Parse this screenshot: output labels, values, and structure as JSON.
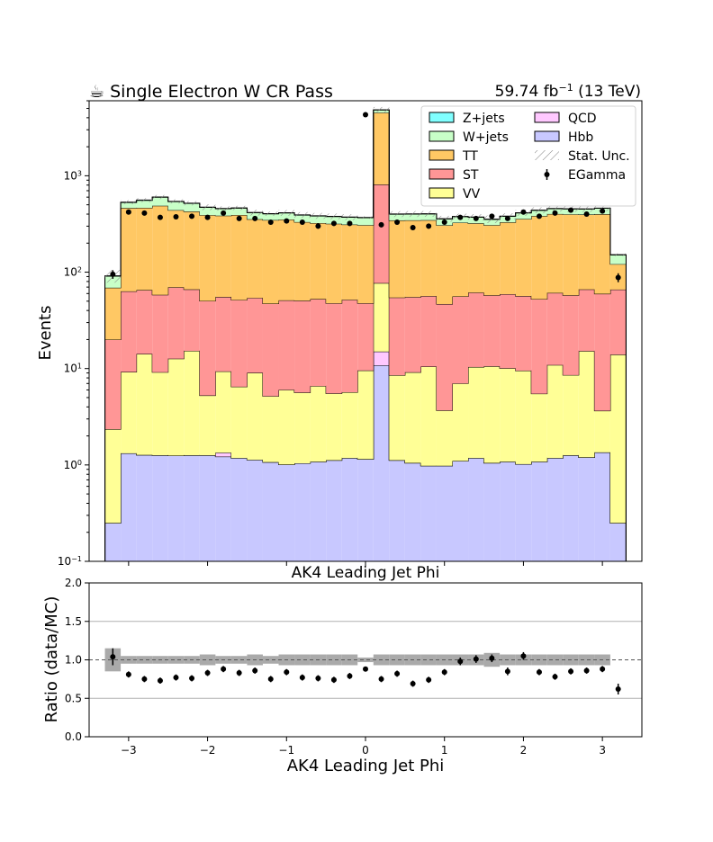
{
  "header": {
    "title": "☕ Single Electron W CR Pass",
    "lumi_prefix": "59.74 fb",
    "lumi_exp": "−1",
    "lumi_suffix": " (13 TeV)"
  },
  "colors": {
    "Z+jets": "#80ffff",
    "W+jets": "#c8ffc8",
    "TT": "#ffc864",
    "ST": "#ff9696",
    "VV": "#ffff96",
    "QCD": "#ffc8ff",
    "Hbb": "#c8c8ff",
    "unc": "#aaaaaa"
  },
  "chart_data": [
    {
      "type": "area",
      "subtype": "stacked-step-histogram",
      "xlabel": "AK4 Leading Jet Phi",
      "ylabel": "Events",
      "yscale": "log",
      "ylim": [
        0.1,
        6000
      ],
      "xlim": [
        -3.5,
        3.5
      ],
      "yticks": [
        {
          "base": "10",
          "exp": "−1",
          "value": 0.1
        },
        {
          "base": "10",
          "exp": "0",
          "value": 1
        },
        {
          "base": "10",
          "exp": "1",
          "value": 10
        },
        {
          "base": "10",
          "exp": "2",
          "value": 100
        },
        {
          "base": "10",
          "exp": "3",
          "value": 1000
        }
      ],
      "bin_edges": [
        -3.3,
        -3.1,
        -2.9,
        -2.7,
        -2.5,
        -2.3,
        -2.1,
        -1.9,
        -1.7,
        -1.5,
        -1.3,
        -1.1,
        -0.9,
        -0.7,
        -0.5,
        -0.3,
        -0.1,
        0.1,
        0.3,
        0.5,
        0.7,
        0.9,
        1.1,
        1.3,
        1.5,
        1.7,
        1.9,
        2.1,
        2.3,
        2.5,
        2.7,
        2.9,
        3.1,
        3.3
      ],
      "series": [
        {
          "name": "Hbb",
          "values": [
            0.25,
            1.32,
            1.27,
            1.26,
            1.25,
            1.26,
            1.26,
            1.22,
            1.18,
            1.13,
            1.07,
            1.01,
            1.04,
            1.08,
            1.12,
            1.18,
            1.15,
            10.8,
            1.12,
            1.05,
            0.98,
            0.98,
            1.1,
            1.18,
            1.05,
            1.08,
            1.02,
            1.08,
            1.18,
            1.26,
            1.2,
            1.35,
            0.25
          ]
        },
        {
          "name": "QCD",
          "values": [
            0,
            0,
            0,
            0,
            0,
            0,
            0,
            0.12,
            0,
            0,
            0,
            0,
            0,
            0,
            0,
            0,
            0,
            4.2,
            0,
            0,
            0,
            0,
            0,
            0,
            0,
            0,
            0,
            0,
            0,
            0,
            0,
            0,
            0
          ]
        },
        {
          "name": "VV",
          "values": [
            2.1,
            7.9,
            12.9,
            7.9,
            11.4,
            14.0,
            4.0,
            8.0,
            5.3,
            7.9,
            4.1,
            5.0,
            4.6,
            5.5,
            4.4,
            4.5,
            8.4,
            62.0,
            7.4,
            8.1,
            9.5,
            2.7,
            5.9,
            9.2,
            9.5,
            9.0,
            8.5,
            4.4,
            9.7,
            7.3,
            14.0,
            2.3,
            13.7
          ]
        },
        {
          "name": "ST",
          "values": [
            17.6,
            54,
            51,
            49,
            57,
            51,
            45,
            46,
            45,
            45,
            42,
            45,
            45,
            46,
            42,
            46,
            38,
            735,
            46,
            46,
            46,
            43,
            49,
            51,
            47,
            49,
            47,
            47,
            50,
            49,
            51,
            56,
            52
          ]
        },
        {
          "name": "TT",
          "values": [
            49,
            400,
            400,
            430,
            370,
            360,
            340,
            330,
            340,
            300,
            300,
            300,
            280,
            270,
            270,
            260,
            260,
            3700,
            290,
            290,
            290,
            260,
            270,
            260,
            250,
            270,
            300,
            330,
            340,
            340,
            330,
            340,
            55
          ]
        },
        {
          "name": "W+jets",
          "values": [
            22,
            65,
            90,
            110,
            100,
            90,
            80,
            70,
            70,
            60,
            55,
            60,
            60,
            60,
            60,
            60,
            60,
            300,
            55,
            55,
            55,
            50,
            50,
            50,
            45,
            50,
            55,
            55,
            55,
            55,
            55,
            60,
            30
          ]
        },
        {
          "name": "Z+jets",
          "values": [
            0.6,
            4,
            4,
            4,
            3,
            3,
            3,
            3,
            3,
            2,
            2,
            2,
            2,
            2,
            2,
            2,
            2,
            20,
            2,
            2,
            2,
            2,
            2,
            2,
            2,
            2,
            2,
            2,
            2,
            2,
            2,
            2,
            1
          ]
        }
      ],
      "data_points": {
        "name": "EGamma",
        "x": [
          -3.2,
          -3.0,
          -2.8,
          -2.6,
          -2.4,
          -2.2,
          -2.0,
          -1.8,
          -1.6,
          -1.4,
          -1.2,
          -1.0,
          -0.8,
          -0.6,
          -0.4,
          -0.2,
          0.0,
          0.2,
          0.4,
          0.6,
          0.8,
          1.0,
          1.2,
          1.4,
          1.6,
          1.8,
          2.0,
          2.2,
          2.4,
          2.6,
          2.8,
          3.0,
          3.2
        ],
        "y": [
          95,
          420,
          410,
          370,
          375,
          380,
          370,
          410,
          360,
          360,
          330,
          340,
          330,
          300,
          320,
          320,
          4300,
          310,
          330,
          290,
          300,
          330,
          370,
          360,
          380,
          360,
          420,
          380,
          410,
          440,
          400,
          430,
          88
        ]
      },
      "legend": {
        "placement": "top-right",
        "columns": 2,
        "entries": [
          "Z+jets",
          "QCD",
          "W+jets",
          "Hbb",
          "TT",
          "Stat. Unc.",
          "ST",
          "EGamma",
          "VV"
        ]
      }
    },
    {
      "type": "scatter",
      "subtype": "ratio-panel",
      "xlabel": "AK4 Leading Jet Phi",
      "ylabel": "Ratio (data/MC)",
      "ylim": [
        0.0,
        2.0
      ],
      "xlim": [
        -3.5,
        3.5
      ],
      "yticks": [
        "0.0",
        "0.5",
        "1.0",
        "1.5",
        "2.0"
      ],
      "xticks": [
        "−3",
        "−2",
        "−1",
        "0",
        "1",
        "2",
        "3"
      ],
      "grid": "horizontal",
      "reference_line": 1.0,
      "x": [
        -3.2,
        -3.0,
        -2.8,
        -2.6,
        -2.4,
        -2.2,
        -2.0,
        -1.8,
        -1.6,
        -1.4,
        -1.2,
        -1.0,
        -0.8,
        -0.6,
        -0.4,
        -0.2,
        0.0,
        0.2,
        0.4,
        0.6,
        0.8,
        1.0,
        1.2,
        1.4,
        1.6,
        1.8,
        2.0,
        2.2,
        2.4,
        2.6,
        2.8,
        3.0,
        3.2
      ],
      "y": [
        1.04,
        0.81,
        0.75,
        0.73,
        0.77,
        0.76,
        0.83,
        0.88,
        0.83,
        0.86,
        0.75,
        0.84,
        0.77,
        0.76,
        0.74,
        0.79,
        0.88,
        0.75,
        0.82,
        0.69,
        0.74,
        0.84,
        0.98,
        1.01,
        1.02,
        0.85,
        1.05,
        0.84,
        0.78,
        0.85,
        0.86,
        0.88,
        0.62
      ],
      "yerr": [
        0.11,
        0.04,
        0.04,
        0.04,
        0.04,
        0.04,
        0.04,
        0.04,
        0.04,
        0.04,
        0.04,
        0.04,
        0.04,
        0.04,
        0.04,
        0.04,
        0.02,
        0.04,
        0.04,
        0.04,
        0.04,
        0.04,
        0.05,
        0.05,
        0.05,
        0.05,
        0.05,
        0.04,
        0.04,
        0.04,
        0.04,
        0.04,
        0.07
      ],
      "unc": [
        0.15,
        0.05,
        0.05,
        0.05,
        0.05,
        0.05,
        0.07,
        0.05,
        0.05,
        0.07,
        0.05,
        0.07,
        0.07,
        0.07,
        0.07,
        0.07,
        0.03,
        0.07,
        0.07,
        0.07,
        0.07,
        0.07,
        0.07,
        0.07,
        0.09,
        0.07,
        0.07,
        0.07,
        0.07,
        0.07,
        0.07,
        0.07,
        0.0
      ]
    }
  ]
}
